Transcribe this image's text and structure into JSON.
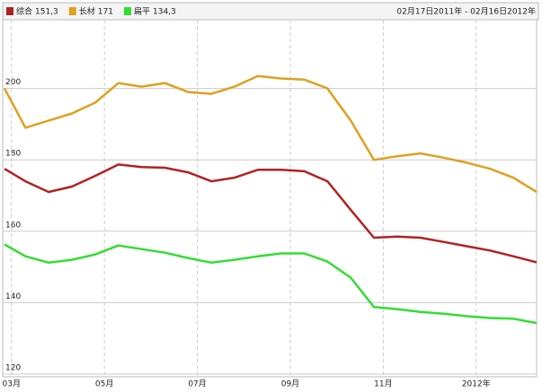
{
  "chart_data": {
    "type": "line",
    "subtitle": "02月17日2011年 - 02月16日2012年",
    "x": [
      2.85,
      3.3,
      3.8,
      4.3,
      4.8,
      5.3,
      5.8,
      6.3,
      6.8,
      7.3,
      7.8,
      8.3,
      8.8,
      9.3,
      9.8,
      10.3,
      10.8,
      11.3,
      11.8,
      12.3,
      12.8,
      13.3,
      13.8,
      14.3
    ],
    "series": [
      {
        "name": "综合",
        "current": "151,3",
        "color": "#b22222",
        "values": [
          177.5,
          174,
          171,
          172.5,
          175.5,
          178.7,
          178,
          177.8,
          176.5,
          174,
          175,
          177.2,
          177.2,
          176.8,
          174,
          166,
          158.2,
          158.5,
          158.2,
          157,
          155.8,
          154.6,
          153,
          151.3
        ]
      },
      {
        "name": "长材",
        "current": "171",
        "color": "#e0a020",
        "values": [
          200,
          189,
          191,
          193,
          196,
          201.5,
          200.5,
          201.5,
          199,
          198.5,
          200.5,
          203.5,
          202.8,
          202.5,
          200,
          191,
          180,
          181,
          181.8,
          180.6,
          179.2,
          177.5,
          175,
          171
        ]
      },
      {
        "name": "扁平",
        "current": "134,3",
        "color": "#33dd33",
        "values": [
          156.3,
          153,
          151.2,
          152,
          153.5,
          156,
          155,
          154,
          152.5,
          151.2,
          152,
          153,
          153.8,
          153.8,
          151.5,
          147,
          138.8,
          138.2,
          137.4,
          136.9,
          136.2,
          135.7,
          135.5,
          134.3
        ]
      }
    ],
    "xlim": [
      2.85,
      14.3
    ],
    "xticks": [
      {
        "value": 3,
        "label": "03月"
      },
      {
        "value": 5,
        "label": "05月"
      },
      {
        "value": 7,
        "label": "07月"
      },
      {
        "value": 9,
        "label": "09月"
      },
      {
        "value": 11,
        "label": "11月"
      },
      {
        "value": 13,
        "label": "2012年"
      }
    ],
    "ylim": [
      120,
      220
    ],
    "yticks": [
      120,
      140,
      160,
      180,
      200
    ],
    "grid": true
  }
}
